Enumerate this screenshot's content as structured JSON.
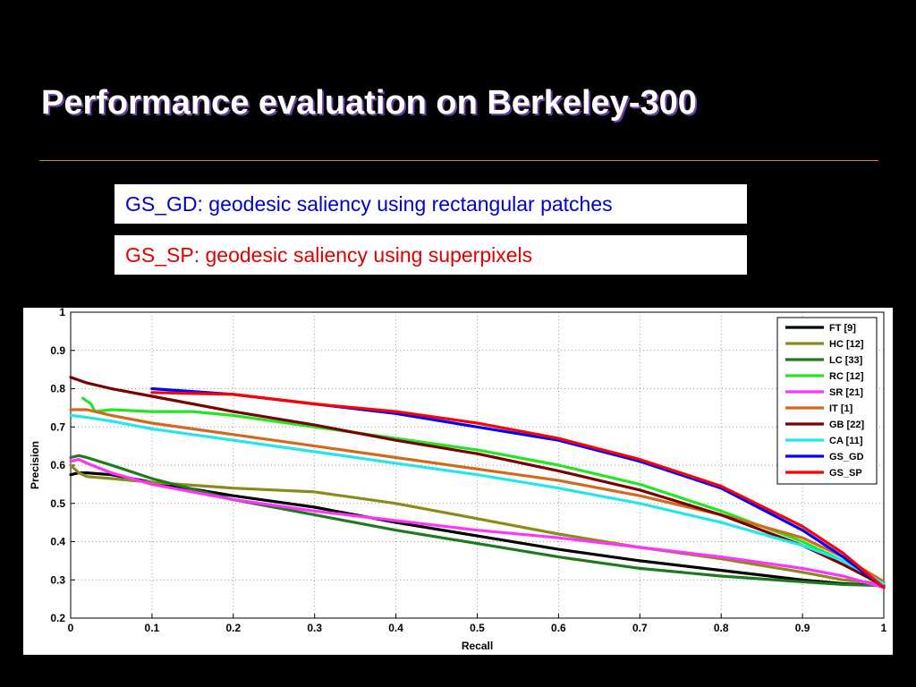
{
  "slide": {
    "title": "Performance evaluation on Berkeley-300",
    "rule_color": "#d98c1c",
    "definitions": [
      {
        "text": "GS_GD: geodesic saliency using rectangular patches",
        "color": "#0000cc"
      },
      {
        "text": "GS_SP: geodesic saliency using superpixels",
        "color": "#e00000"
      }
    ]
  },
  "chart_data": {
    "type": "line",
    "title": "",
    "xlabel": "Recall",
    "ylabel": "Precision",
    "xlim": [
      0,
      1
    ],
    "ylim": [
      0.2,
      1
    ],
    "xticks": [
      "0",
      "0.1",
      "0.2",
      "0.3",
      "0.4",
      "0.5",
      "0.6",
      "0.7",
      "0.8",
      "0.9",
      "1"
    ],
    "yticks": [
      "0.2",
      "0.3",
      "0.4",
      "0.5",
      "0.6",
      "0.7",
      "0.8",
      "0.9",
      "1"
    ],
    "grid": true,
    "grid_style": "dotted",
    "legend_position": "top-right",
    "series": [
      {
        "name": "FT [9]",
        "color": "#000000",
        "x": [
          0,
          0.01,
          0.02,
          0.05,
          0.1,
          0.2,
          0.3,
          0.4,
          0.5,
          0.6,
          0.7,
          0.8,
          0.9,
          0.95,
          1
        ],
        "y": [
          0.575,
          0.58,
          0.58,
          0.575,
          0.555,
          0.52,
          0.49,
          0.45,
          0.415,
          0.38,
          0.35,
          0.325,
          0.3,
          0.29,
          0.285
        ]
      },
      {
        "name": "HC [12]",
        "color": "#8b8b1a",
        "x": [
          0,
          0.01,
          0.02,
          0.05,
          0.1,
          0.2,
          0.3,
          0.4,
          0.5,
          0.6,
          0.7,
          0.8,
          0.9,
          0.95,
          1
        ],
        "y": [
          0.6,
          0.58,
          0.57,
          0.565,
          0.555,
          0.54,
          0.53,
          0.5,
          0.46,
          0.42,
          0.385,
          0.355,
          0.32,
          0.3,
          0.29
        ]
      },
      {
        "name": "LC [33]",
        "color": "#1f7a1f",
        "x": [
          0,
          0.01,
          0.02,
          0.05,
          0.1,
          0.2,
          0.3,
          0.4,
          0.5,
          0.6,
          0.7,
          0.8,
          0.9,
          0.95,
          1
        ],
        "y": [
          0.62,
          0.625,
          0.62,
          0.6,
          0.565,
          0.51,
          0.47,
          0.43,
          0.395,
          0.36,
          0.33,
          0.31,
          0.295,
          0.288,
          0.285
        ]
      },
      {
        "name": "RC [12]",
        "color": "#22e622",
        "x": [
          0.015,
          0.025,
          0.03,
          0.05,
          0.1,
          0.15,
          0.2,
          0.3,
          0.4,
          0.5,
          0.6,
          0.7,
          0.8,
          0.9,
          0.95,
          1
        ],
        "y": [
          0.775,
          0.76,
          0.74,
          0.745,
          0.74,
          0.74,
          0.73,
          0.7,
          0.67,
          0.64,
          0.6,
          0.55,
          0.48,
          0.4,
          0.35,
          0.295
        ]
      },
      {
        "name": "SR [21]",
        "color": "#ff33ff",
        "x": [
          0,
          0.01,
          0.02,
          0.05,
          0.1,
          0.2,
          0.3,
          0.4,
          0.5,
          0.6,
          0.7,
          0.8,
          0.9,
          0.95,
          1
        ],
        "y": [
          0.61,
          0.615,
          0.605,
          0.58,
          0.55,
          0.51,
          0.48,
          0.455,
          0.43,
          0.41,
          0.385,
          0.36,
          0.33,
          0.31,
          0.28
        ]
      },
      {
        "name": "IT [1]",
        "color": "#d2691e",
        "x": [
          0,
          0.02,
          0.05,
          0.1,
          0.2,
          0.3,
          0.4,
          0.5,
          0.6,
          0.7,
          0.8,
          0.9,
          0.95,
          1
        ],
        "y": [
          0.745,
          0.745,
          0.73,
          0.71,
          0.68,
          0.65,
          0.62,
          0.59,
          0.56,
          0.52,
          0.47,
          0.41,
          0.36,
          0.295
        ]
      },
      {
        "name": "GB [22]",
        "color": "#7a0000",
        "x": [
          0,
          0.02,
          0.05,
          0.1,
          0.2,
          0.3,
          0.4,
          0.5,
          0.6,
          0.7,
          0.8,
          0.9,
          0.95,
          1
        ],
        "y": [
          0.83,
          0.815,
          0.8,
          0.78,
          0.74,
          0.705,
          0.665,
          0.63,
          0.585,
          0.535,
          0.47,
          0.39,
          0.34,
          0.285
        ]
      },
      {
        "name": "CA [11]",
        "color": "#22e6ee",
        "x": [
          0,
          0.02,
          0.05,
          0.1,
          0.2,
          0.3,
          0.4,
          0.5,
          0.6,
          0.7,
          0.8,
          0.9,
          0.95,
          1
        ],
        "y": [
          0.73,
          0.725,
          0.715,
          0.695,
          0.665,
          0.635,
          0.605,
          0.575,
          0.54,
          0.5,
          0.45,
          0.39,
          0.35,
          0.29
        ]
      },
      {
        "name": "GS_GD",
        "color": "#0000ff",
        "x": [
          0.1,
          0.2,
          0.3,
          0.4,
          0.5,
          0.6,
          0.7,
          0.8,
          0.9,
          0.95,
          1
        ],
        "y": [
          0.8,
          0.785,
          0.76,
          0.735,
          0.7,
          0.665,
          0.61,
          0.54,
          0.43,
          0.36,
          0.28
        ]
      },
      {
        "name": "GS_SP",
        "color": "#ff0000",
        "x": [
          0.1,
          0.2,
          0.3,
          0.4,
          0.5,
          0.6,
          0.7,
          0.8,
          0.9,
          0.95,
          1
        ],
        "y": [
          0.79,
          0.785,
          0.76,
          0.74,
          0.71,
          0.67,
          0.615,
          0.545,
          0.44,
          0.37,
          0.28
        ]
      }
    ]
  }
}
